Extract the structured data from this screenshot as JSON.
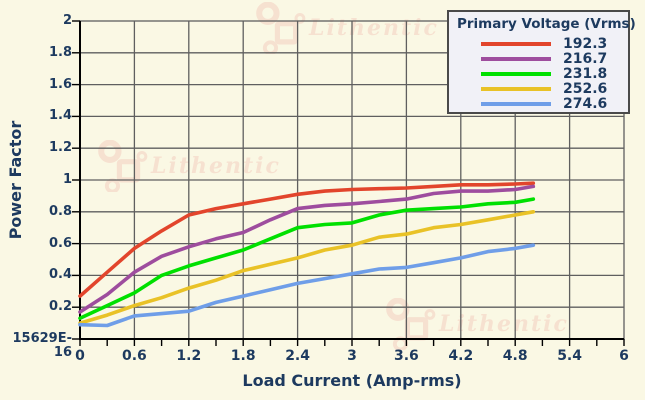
{
  "watermark": {
    "text": "Lithentic",
    "color": "#f6dccc"
  },
  "colors": {
    "background": "#faf8e4",
    "text": "#1d3a5f",
    "gridline": "#5f5f5f",
    "axis": "#000000",
    "legend_background": "#f1f1f7",
    "legend_border": "#4a4a4a"
  },
  "chart_data": {
    "type": "line",
    "title": "",
    "xlabel": "Load Current (Amp-rms)",
    "ylabel": "Power Factor",
    "xlim": [
      0,
      6
    ],
    "ylim": [
      0,
      2
    ],
    "grid": true,
    "x_tick_labels": [
      "0",
      "0.6",
      "1.2",
      "1.8",
      "2.4",
      "3",
      "3.6",
      "4.2",
      "4.8",
      "5.4",
      "6"
    ],
    "x_tick_step": 0.6,
    "x_minor_tick_step": 0.3,
    "y_tick_labels": [
      "2",
      "1.8",
      "1.6",
      "1.4",
      "1.2",
      "1",
      "0.8",
      "0.6",
      "0.4",
      "0.2",
      "15629E-16"
    ],
    "y_tick_step": 0.2,
    "legend": {
      "title": "Primary Voltage (Vrms)",
      "position": "top-right"
    },
    "x": [
      0,
      0.3,
      0.6,
      0.9,
      1.2,
      1.5,
      1.8,
      2.1,
      2.4,
      2.7,
      3.0,
      3.3,
      3.6,
      3.9,
      4.2,
      4.5,
      4.8,
      5.0
    ],
    "series": [
      {
        "name": "192.3",
        "color": "#e2452c",
        "values": [
          0.27,
          0.42,
          0.57,
          0.68,
          0.78,
          0.82,
          0.85,
          0.88,
          0.91,
          0.93,
          0.94,
          0.945,
          0.95,
          0.96,
          0.97,
          0.97,
          0.975,
          0.98
        ]
      },
      {
        "name": "216.7",
        "color": "#9e4d9e",
        "values": [
          0.17,
          0.28,
          0.42,
          0.52,
          0.58,
          0.63,
          0.67,
          0.75,
          0.82,
          0.84,
          0.85,
          0.865,
          0.88,
          0.915,
          0.93,
          0.93,
          0.94,
          0.96
        ]
      },
      {
        "name": "231.8",
        "color": "#00e000",
        "values": [
          0.13,
          0.21,
          0.29,
          0.4,
          0.46,
          0.51,
          0.56,
          0.63,
          0.7,
          0.72,
          0.73,
          0.78,
          0.81,
          0.82,
          0.83,
          0.85,
          0.86,
          0.88
        ]
      },
      {
        "name": "252.6",
        "color": "#e9c227",
        "values": [
          0.1,
          0.15,
          0.21,
          0.26,
          0.32,
          0.37,
          0.43,
          0.47,
          0.51,
          0.56,
          0.59,
          0.64,
          0.66,
          0.7,
          0.72,
          0.75,
          0.78,
          0.8
        ]
      },
      {
        "name": "274.6",
        "color": "#6f9ee8",
        "values": [
          0.09,
          0.085,
          0.145,
          0.16,
          0.175,
          0.23,
          0.27,
          0.31,
          0.35,
          0.38,
          0.41,
          0.44,
          0.45,
          0.48,
          0.51,
          0.55,
          0.57,
          0.59
        ]
      }
    ]
  }
}
